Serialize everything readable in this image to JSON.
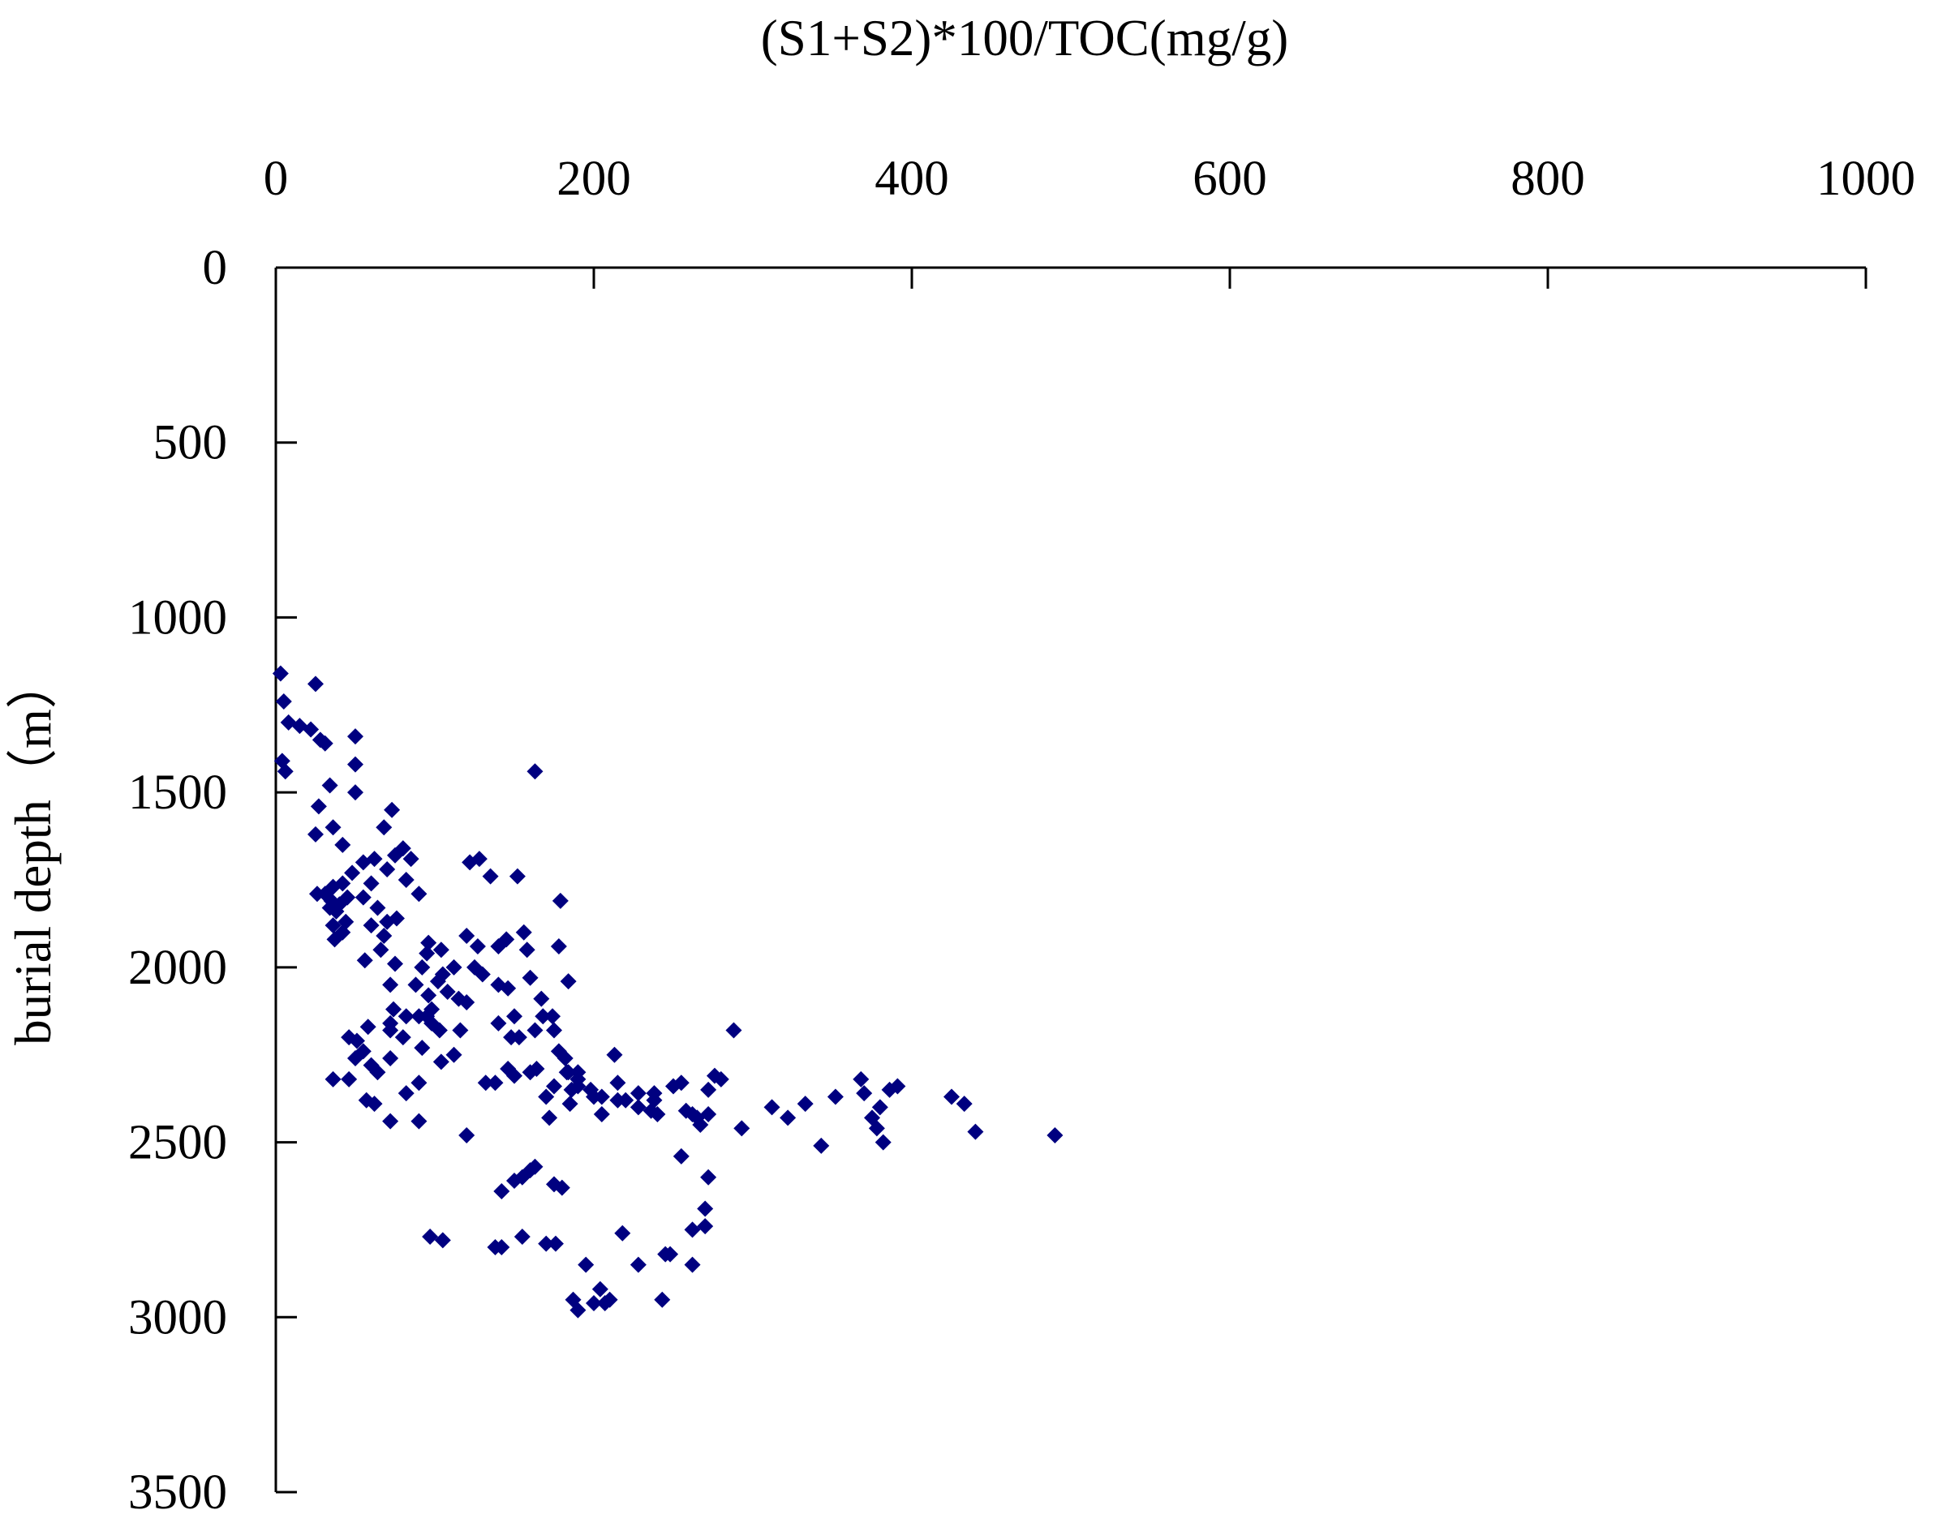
{
  "chart_data": {
    "type": "scatter",
    "title": "",
    "xlabel": "(S1+S2)*100/TOC(mg/g)",
    "ylabel": "burial depth（m）",
    "x_axis_position": "top",
    "y_axis_inverted": true,
    "xlim": [
      0,
      1000
    ],
    "ylim": [
      0,
      3500
    ],
    "x_ticks": [
      "0",
      "200",
      "400",
      "600",
      "800",
      "1000"
    ],
    "y_ticks": [
      "0",
      "500",
      "1000",
      "1500",
      "2000",
      "2500",
      "3000",
      "3500"
    ],
    "x_tick_values": [
      0,
      200,
      400,
      600,
      800,
      1000
    ],
    "y_tick_values": [
      0,
      500,
      1000,
      1500,
      2000,
      2500,
      3000,
      3500
    ],
    "grid": false,
    "legend": "none",
    "marker": "diamond",
    "marker_color": "#000080",
    "series": [
      {
        "points": [
          [
            3,
            1160
          ],
          [
            5,
            1240
          ],
          [
            25,
            1190
          ],
          [
            8,
            1300
          ],
          [
            15,
            1310
          ],
          [
            22,
            1320
          ],
          [
            28,
            1350
          ],
          [
            31,
            1360
          ],
          [
            50,
            1340
          ],
          [
            50,
            1420
          ],
          [
            4,
            1410
          ],
          [
            6,
            1440
          ],
          [
            163,
            1440
          ],
          [
            34,
            1480
          ],
          [
            50,
            1500
          ],
          [
            27,
            1540
          ],
          [
            36,
            1600
          ],
          [
            25,
            1620
          ],
          [
            73,
            1550
          ],
          [
            68,
            1600
          ],
          [
            42,
            1650
          ],
          [
            55,
            1700
          ],
          [
            62,
            1690
          ],
          [
            75,
            1680
          ],
          [
            80,
            1660
          ],
          [
            85,
            1690
          ],
          [
            82,
            1750
          ],
          [
            70,
            1720
          ],
          [
            60,
            1760
          ],
          [
            48,
            1730
          ],
          [
            42,
            1760
          ],
          [
            36,
            1770
          ],
          [
            31,
            1790
          ],
          [
            26,
            1790
          ],
          [
            35,
            1810
          ],
          [
            40,
            1820
          ],
          [
            45,
            1800
          ],
          [
            55,
            1800
          ],
          [
            64,
            1830
          ],
          [
            70,
            1870
          ],
          [
            34,
            1830
          ],
          [
            38,
            1840
          ],
          [
            44,
            1870
          ],
          [
            36,
            1880
          ],
          [
            42,
            1900
          ],
          [
            37,
            1920
          ],
          [
            60,
            1880
          ],
          [
            76,
            1860
          ],
          [
            68,
            1910
          ],
          [
            90,
            1790
          ],
          [
            122,
            1700
          ],
          [
            128,
            1690
          ],
          [
            135,
            1740
          ],
          [
            152,
            1740
          ],
          [
            179,
            1810
          ],
          [
            120,
            1910
          ],
          [
            127,
            1940
          ],
          [
            140,
            1940
          ],
          [
            145,
            1920
          ],
          [
            156,
            1900
          ],
          [
            158,
            1950
          ],
          [
            178,
            1940
          ],
          [
            184,
            2040
          ],
          [
            160,
            2030
          ],
          [
            167,
            2090
          ],
          [
            168,
            2140
          ],
          [
            163,
            2180
          ],
          [
            174,
            2140
          ],
          [
            175,
            2180
          ],
          [
            178,
            2240
          ],
          [
            182,
            2260
          ],
          [
            184,
            2300
          ],
          [
            190,
            2300
          ],
          [
            186,
            2350
          ],
          [
            198,
            2350
          ],
          [
            205,
            2370
          ],
          [
            213,
            2250
          ],
          [
            215,
            2330
          ],
          [
            220,
            2380
          ],
          [
            228,
            2400
          ],
          [
            228,
            2360
          ],
          [
            236,
            2410
          ],
          [
            238,
            2380
          ],
          [
            238,
            2360
          ],
          [
            250,
            2340
          ],
          [
            255,
            2330
          ],
          [
            258,
            2410
          ],
          [
            262,
            2420
          ],
          [
            265,
            2430
          ],
          [
            267,
            2450
          ],
          [
            272,
            2420
          ],
          [
            272,
            2350
          ],
          [
            276,
            2310
          ],
          [
            280,
            2320
          ],
          [
            288,
            2180
          ],
          [
            293,
            2460
          ],
          [
            312,
            2400
          ],
          [
            322,
            2430
          ],
          [
            333,
            2390
          ],
          [
            343,
            2510
          ],
          [
            352,
            2370
          ],
          [
            368,
            2320
          ],
          [
            370,
            2360
          ],
          [
            375,
            2430
          ],
          [
            378,
            2460
          ],
          [
            380,
            2400
          ],
          [
            382,
            2500
          ],
          [
            386,
            2350
          ],
          [
            391,
            2340
          ],
          [
            425,
            2370
          ],
          [
            433,
            2390
          ],
          [
            440,
            2470
          ],
          [
            490,
            2480
          ],
          [
            95,
            1960
          ],
          [
            92,
            2000
          ],
          [
            88,
            2050
          ],
          [
            96,
            2080
          ],
          [
            98,
            2120
          ],
          [
            102,
            2040
          ],
          [
            108,
            2070
          ],
          [
            115,
            2090
          ],
          [
            105,
            2020
          ],
          [
            112,
            2000
          ],
          [
            120,
            2100
          ],
          [
            104,
            1950
          ],
          [
            125,
            2000
          ],
          [
            130,
            2020
          ],
          [
            96,
            1930
          ],
          [
            75,
            1990
          ],
          [
            66,
            1950
          ],
          [
            56,
            1980
          ],
          [
            72,
            2050
          ],
          [
            74,
            2120
          ],
          [
            72,
            2160
          ],
          [
            82,
            2140
          ],
          [
            90,
            2140
          ],
          [
            95,
            2140
          ],
          [
            98,
            2160
          ],
          [
            103,
            2180
          ],
          [
            116,
            2180
          ],
          [
            112,
            2250
          ],
          [
            104,
            2270
          ],
          [
            92,
            2230
          ],
          [
            80,
            2200
          ],
          [
            72,
            2180
          ],
          [
            58,
            2170
          ],
          [
            51,
            2210
          ],
          [
            46,
            2200
          ],
          [
            55,
            2240
          ],
          [
            50,
            2260
          ],
          [
            60,
            2280
          ],
          [
            64,
            2300
          ],
          [
            72,
            2260
          ],
          [
            90,
            2330
          ],
          [
            82,
            2360
          ],
          [
            72,
            2440
          ],
          [
            90,
            2440
          ],
          [
            120,
            2480
          ],
          [
            62,
            2390
          ],
          [
            57,
            2380
          ],
          [
            46,
            2320
          ],
          [
            36,
            2320
          ],
          [
            140,
            2050
          ],
          [
            146,
            2060
          ],
          [
            150,
            2140
          ],
          [
            153,
            2200
          ],
          [
            148,
            2200
          ],
          [
            140,
            2160
          ],
          [
            132,
            2330
          ],
          [
            138,
            2330
          ],
          [
            146,
            2290
          ],
          [
            150,
            2310
          ],
          [
            160,
            2300
          ],
          [
            164,
            2290
          ],
          [
            170,
            2370
          ],
          [
            175,
            2340
          ],
          [
            172,
            2430
          ],
          [
            183,
            2300
          ],
          [
            190,
            2320
          ],
          [
            200,
            2370
          ],
          [
            142,
            2640
          ],
          [
            150,
            2610
          ],
          [
            155,
            2600
          ],
          [
            160,
            2580
          ],
          [
            163,
            2570
          ],
          [
            175,
            2620
          ],
          [
            180,
            2630
          ],
          [
            190,
            2340
          ],
          [
            255,
            2540
          ],
          [
            272,
            2600
          ],
          [
            270,
            2690
          ],
          [
            270,
            2740
          ],
          [
            262,
            2750
          ],
          [
            262,
            2850
          ],
          [
            228,
            2850
          ],
          [
            218,
            2760
          ],
          [
            245,
            2820
          ],
          [
            248,
            2820
          ],
          [
            195,
            2850
          ],
          [
            187,
            2950
          ],
          [
            190,
            2980
          ],
          [
            200,
            2960
          ],
          [
            204,
            2920
          ],
          [
            207,
            2960
          ],
          [
            210,
            2950
          ],
          [
            243,
            2950
          ],
          [
            97,
            2770
          ],
          [
            105,
            2780
          ],
          [
            138,
            2800
          ],
          [
            142,
            2800
          ],
          [
            155,
            2770
          ],
          [
            170,
            2790
          ],
          [
            176,
            2790
          ],
          [
            185,
            2390
          ],
          [
            205,
            2420
          ],
          [
            215,
            2380
          ],
          [
            240,
            2420
          ]
        ]
      }
    ]
  }
}
